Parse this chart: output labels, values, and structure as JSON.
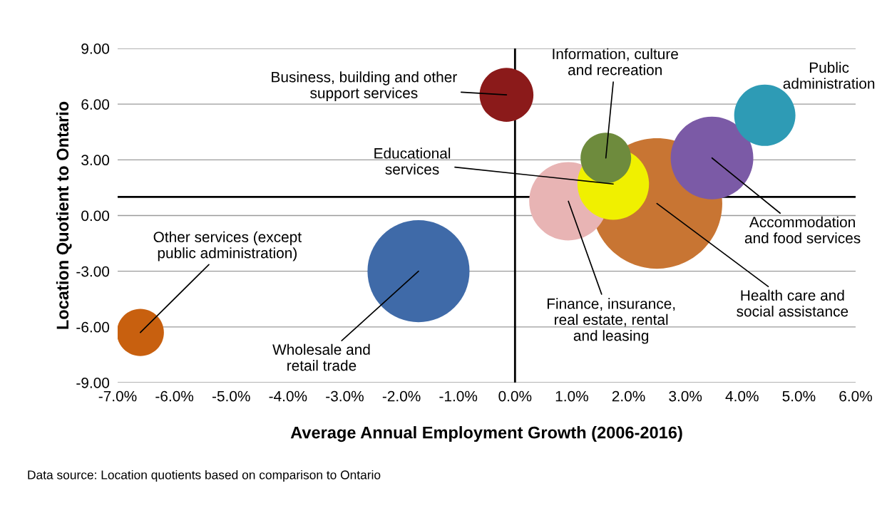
{
  "chart_data": {
    "type": "bubble",
    "xlabel": "Average Annual Employment Growth (2006-2016)",
    "ylabel": "Location Quotient to Ontario",
    "series": [
      {
        "name": "Business, building and other support services",
        "color": "#8b1a1a",
        "x": [
          -0.15
        ],
        "values": [
          6.5
        ],
        "sizes": [
          0.17
        ]
      },
      {
        "name": "Health care and social assistance",
        "color": "#c87533",
        "x": [
          2.5
        ],
        "values": [
          0.65
        ],
        "sizes": [
          1
        ]
      },
      {
        "name": "Finance, insurance, real estate, rental and leasing",
        "color": "#e8b4b4",
        "x": [
          0.94
        ],
        "values": [
          0.77
        ],
        "sizes": [
          0.36
        ]
      },
      {
        "name": "Educational services",
        "color": "#f0f000",
        "x": [
          1.73
        ],
        "values": [
          1.7
        ],
        "sizes": [
          0.3
        ]
      },
      {
        "name": "Information, culture and recreation",
        "color": "#6e8b3d",
        "x": [
          1.6
        ],
        "values": [
          3.1
        ],
        "sizes": [
          0.15
        ]
      },
      {
        "name": "Accommodation and food services",
        "color": "#7b5aa6",
        "x": [
          3.47
        ],
        "values": [
          3.1
        ],
        "sizes": [
          0.4
        ]
      },
      {
        "name": "Public administration",
        "color": "#2e9bb5",
        "x": [
          4.4
        ],
        "values": [
          5.4
        ],
        "sizes": [
          0.22
        ]
      },
      {
        "name": "Wholesale and retail trade",
        "color": "#3f6aa8",
        "x": [
          -1.7
        ],
        "values": [
          -3.0
        ],
        "sizes": [
          0.61
        ]
      },
      {
        "name": "Other services (except public administration)",
        "color": "#c8600f",
        "x": [
          -6.6
        ],
        "values": [
          -6.3
        ],
        "sizes": [
          0.13
        ]
      }
    ],
    "xlim": [
      -7,
      6
    ],
    "xticks": [
      {
        "value": -7,
        "label": "-7.0%"
      },
      {
        "value": -6,
        "label": "-6.0%"
      },
      {
        "value": -5,
        "label": "-5.0%"
      },
      {
        "value": -4,
        "label": "-4.0%"
      },
      {
        "value": -3,
        "label": "-3.0%"
      },
      {
        "value": -2,
        "label": "-2.0%"
      },
      {
        "value": -1,
        "label": "-1.0%"
      },
      {
        "value": 0,
        "label": "0.0%"
      },
      {
        "value": 1,
        "label": "1.0%"
      },
      {
        "value": 2,
        "label": "2.0%"
      },
      {
        "value": 3,
        "label": "3.0%"
      },
      {
        "value": 4,
        "label": "4.0%"
      },
      {
        "value": 5,
        "label": "5.0%"
      },
      {
        "value": 6,
        "label": "6.0%"
      }
    ],
    "ylim": [
      -9,
      9
    ],
    "yticks": [
      {
        "value": -9,
        "label": "-9.00"
      },
      {
        "value": -6,
        "label": "-6.00"
      },
      {
        "value": -3,
        "label": "-3.00"
      },
      {
        "value": 0,
        "label": "0.00"
      },
      {
        "value": 3,
        "label": "3.00"
      },
      {
        "value": 6,
        "label": "6.00"
      },
      {
        "value": 9,
        "label": "9.00"
      }
    ],
    "ref_lines": [
      {
        "axis": "y",
        "value": 1,
        "color": "#000000"
      },
      {
        "axis": "x",
        "value": 0,
        "color": "#000000"
      }
    ],
    "grid": "y",
    "legend": false,
    "annotations": [
      "Data source: Location quotients based on comparison to Ontario"
    ]
  }
}
